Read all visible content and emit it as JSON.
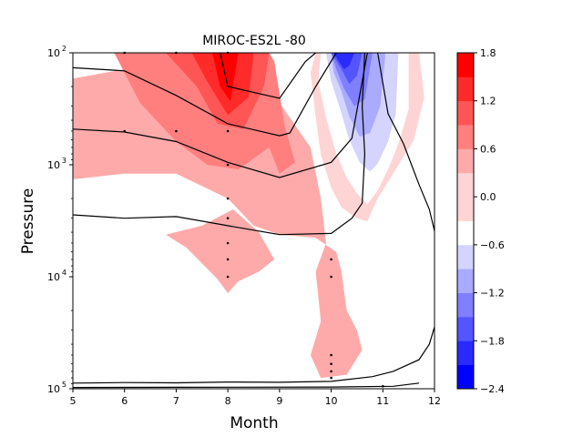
{
  "chart_data": {
    "type": "contour",
    "title": "MIROC-ES2L -80",
    "xlabel": "Month",
    "ylabel": "Pressure",
    "xlim": [
      5,
      12
    ],
    "ylim": [
      100000,
      100
    ],
    "yscale": "log",
    "x_ticks": [
      5,
      6,
      7,
      8,
      9,
      10,
      11,
      12
    ],
    "x_tick_labels": [
      "5",
      "6",
      "7",
      "8",
      "9",
      "10",
      "11",
      "12"
    ],
    "y_ticks": [
      100,
      1000,
      10000,
      100000
    ],
    "y_tick_labels": [
      {
        "base": "10",
        "exp": "2"
      },
      {
        "base": "10",
        "exp": "3"
      },
      {
        "base": "10",
        "exp": "4"
      },
      {
        "base": "10",
        "exp": "5"
      }
    ],
    "colorbar": {
      "levels": [
        -2.4,
        -2.1,
        -1.8,
        -1.5,
        -1.2,
        -0.9,
        -0.6,
        -0.3,
        0.3,
        0.6,
        0.9,
        1.2,
        1.5,
        1.8
      ],
      "colors": [
        "#0000ff",
        "#2a2aff",
        "#5555ff",
        "#7f7fff",
        "#aaaaff",
        "#d4d4ff",
        "#ffffff",
        "#ffd4d4",
        "#ffaaaa",
        "#ff7f7f",
        "#ff5555",
        "#ff2a2a",
        "#ff0000"
      ],
      "tick_values": [
        1.8,
        1.2,
        0.6,
        0.0,
        -0.6,
        -1.2,
        -1.8,
        -2.4
      ],
      "tick_labels": [
        "1.8",
        "1.2",
        "0.6",
        "0.0",
        "−0.6",
        "−1.2",
        "−1.8",
        "−2.4"
      ]
    },
    "filled_regions": [
      {
        "level": 0.3,
        "points": [
          [
            5,
            170
          ],
          [
            6,
            140
          ],
          [
            7,
            130
          ],
          [
            7.5,
            160
          ],
          [
            8,
            230
          ],
          [
            9,
            280
          ],
          [
            9.6,
            700
          ],
          [
            9.8,
            2000
          ],
          [
            9.9,
            5000
          ],
          [
            9.7,
            9000
          ],
          [
            9.8,
            25000
          ],
          [
            9.6,
            50000
          ],
          [
            9.8,
            80000
          ],
          [
            10.3,
            75000
          ],
          [
            10.6,
            45000
          ],
          [
            10.5,
            30000
          ],
          [
            10.3,
            20000
          ],
          [
            10.2,
            9000
          ],
          [
            10.1,
            6000
          ],
          [
            9.7,
            4500
          ],
          [
            9,
            4200
          ],
          [
            8.5,
            3500
          ],
          [
            8,
            2000
          ],
          [
            7,
            1200
          ],
          [
            6,
            1200
          ],
          [
            5,
            1350
          ]
        ]
      },
      {
        "level": 0.3,
        "points": [
          [
            8.1,
            2500
          ],
          [
            8.6,
            4000
          ],
          [
            8.9,
            7000
          ],
          [
            8.6,
            9000
          ],
          [
            8.2,
            11000
          ],
          [
            8,
            14000
          ],
          [
            7.8,
            10500
          ],
          [
            7.2,
            5500
          ],
          [
            6.8,
            4200
          ],
          [
            7.5,
            3500
          ]
        ]
      },
      {
        "level": 0.6,
        "points": [
          [
            5,
            100
          ],
          [
            5.8,
            100
          ],
          [
            6.3,
            280
          ],
          [
            7,
            620
          ],
          [
            7.6,
            1000
          ],
          [
            8.2,
            1100
          ],
          [
            8.8,
            700
          ],
          [
            9,
            1200
          ],
          [
            9.3,
            950
          ],
          [
            9.1,
            450
          ],
          [
            8.9,
            120
          ],
          [
            8.8,
            100
          ],
          [
            7.5,
            100
          ],
          [
            6.8,
            100
          ]
        ]
      },
      {
        "level": 0.9,
        "points": [
          [
            6.8,
            100
          ],
          [
            7.4,
            200
          ],
          [
            7.8,
            430
          ],
          [
            8.3,
            480
          ],
          [
            8.7,
            200
          ],
          [
            8.8,
            100
          ]
        ]
      },
      {
        "level": 1.2,
        "points": [
          [
            7.3,
            100
          ],
          [
            7.6,
            180
          ],
          [
            8,
            360
          ],
          [
            8.4,
            250
          ],
          [
            8.5,
            100
          ]
        ]
      },
      {
        "level": 1.5,
        "points": [
          [
            7.7,
            100
          ],
          [
            7.85,
            200
          ],
          [
            8.05,
            270
          ],
          [
            8.2,
            100
          ]
        ]
      },
      {
        "level": 1.8,
        "points": [
          [
            7.9,
            100
          ],
          [
            7.95,
            160
          ],
          [
            8.1,
            170
          ],
          [
            8.1,
            100
          ]
        ]
      },
      {
        "level": -0.3,
        "points": [
          [
            9.7,
            100
          ],
          [
            11.7,
            100
          ],
          [
            11.8,
            250
          ],
          [
            11.6,
            600
          ],
          [
            11.2,
            1200
          ],
          [
            10.9,
            2000
          ],
          [
            10.7,
            3200
          ],
          [
            10.5,
            3000
          ],
          [
            10.2,
            2400
          ],
          [
            10,
            1600
          ],
          [
            9.8,
            820
          ],
          [
            9.7,
            380
          ],
          [
            9.6,
            150
          ]
        ]
      },
      {
        "level": -0.6,
        "points": [
          [
            9.8,
            100
          ],
          [
            11.5,
            100
          ],
          [
            11.5,
            320
          ],
          [
            11.3,
            650
          ],
          [
            11.1,
            1100
          ],
          [
            10.9,
            1700
          ],
          [
            10.7,
            2250
          ],
          [
            10.5,
            1800
          ],
          [
            10.3,
            1300
          ],
          [
            10.1,
            800
          ],
          [
            9.9,
            380
          ],
          [
            9.75,
            180
          ]
        ]
      },
      {
        "level": -0.9,
        "points": [
          [
            9.9,
            100
          ],
          [
            11.3,
            100
          ],
          [
            11.25,
            350
          ],
          [
            11.1,
            620
          ],
          [
            10.9,
            980
          ],
          [
            10.75,
            1150
          ],
          [
            10.55,
            950
          ],
          [
            10.35,
            600
          ],
          [
            10.2,
            350
          ],
          [
            10,
            180
          ]
        ]
      },
      {
        "level": -1.2,
        "points": [
          [
            10,
            100
          ],
          [
            11.05,
            100
          ],
          [
            10.95,
            300
          ],
          [
            10.75,
            520
          ],
          [
            10.55,
            560
          ],
          [
            10.35,
            370
          ],
          [
            10.2,
            220
          ],
          [
            10.05,
            150
          ]
        ]
      },
      {
        "level": -1.5,
        "points": [
          [
            10,
            100
          ],
          [
            10.8,
            100
          ],
          [
            10.65,
            260
          ],
          [
            10.45,
            300
          ],
          [
            10.25,
            210
          ],
          [
            10.1,
            140
          ]
        ]
      },
      {
        "level": -1.8,
        "points": [
          [
            10,
            100
          ],
          [
            10.6,
            100
          ],
          [
            10.5,
            160
          ],
          [
            10.35,
            190
          ],
          [
            10.2,
            140
          ]
        ]
      },
      {
        "level": -2.1,
        "points": [
          [
            10.05,
            100
          ],
          [
            10.45,
            100
          ],
          [
            10.35,
            130
          ],
          [
            10.25,
            140
          ],
          [
            10.15,
            120
          ]
        ]
      }
    ],
    "contour_lines": [
      [
        [
          5,
          136
        ],
        [
          6,
          145
        ],
        [
          7,
          240
        ],
        [
          8,
          430
        ],
        [
          9,
          550
        ],
        [
          9.2,
          520
        ],
        [
          9.7,
          200
        ],
        [
          10.1,
          100
        ]
      ],
      [
        [
          5,
          480
        ],
        [
          6,
          510
        ],
        [
          7,
          620
        ],
        [
          8,
          950
        ],
        [
          9,
          1300
        ],
        [
          10,
          950
        ],
        [
          10.4,
          580
        ],
        [
          10.7,
          100
        ]
      ],
      [
        [
          5,
          2800
        ],
        [
          6,
          3000
        ],
        [
          7,
          2900
        ],
        [
          8,
          3500
        ],
        [
          9,
          4200
        ],
        [
          10,
          4100
        ],
        [
          10.4,
          3000
        ],
        [
          10.6,
          2200
        ],
        [
          10.65,
          800
        ],
        [
          10.6,
          300
        ],
        [
          10.65,
          100
        ]
      ],
      [
        [
          10.9,
          100
        ],
        [
          11.1,
          350
        ],
        [
          11.4,
          650
        ],
        [
          11.7,
          1500
        ],
        [
          11.9,
          2500
        ],
        [
          12,
          3900
        ]
      ],
      [
        [
          7.85,
          100
        ],
        [
          8,
          200
        ],
        [
          9,
          255
        ],
        [
          9.5,
          120
        ],
        [
          9.7,
          100
        ]
      ],
      [
        [
          5,
          89000
        ],
        [
          6,
          88000
        ],
        [
          7,
          88500
        ],
        [
          8,
          87000
        ],
        [
          9,
          87500
        ],
        [
          10,
          86000
        ],
        [
          10.8,
          78000
        ],
        [
          11.2,
          70000
        ],
        [
          11.7,
          55000
        ],
        [
          11.9,
          40000
        ],
        [
          12,
          28000
        ]
      ],
      [
        [
          5,
          97500
        ],
        [
          7,
          97000
        ],
        [
          10,
          96500
        ],
        [
          11.2,
          95000
        ],
        [
          11.7,
          89000
        ]
      ]
    ],
    "stipple_points": [
      [
        6,
        100
      ],
      [
        7,
        100
      ],
      [
        8,
        100
      ],
      [
        6,
        500
      ],
      [
        7,
        500
      ],
      [
        8,
        500
      ],
      [
        8,
        1000
      ],
      [
        8,
        2000
      ],
      [
        8,
        3000
      ],
      [
        8,
        5000
      ],
      [
        8,
        7000
      ],
      [
        8,
        10000
      ],
      [
        10,
        7000
      ],
      [
        10,
        10000
      ],
      [
        10,
        50000
      ],
      [
        10,
        60000
      ],
      [
        10,
        70000
      ],
      [
        10,
        80000
      ],
      [
        11,
        95000
      ]
    ]
  }
}
